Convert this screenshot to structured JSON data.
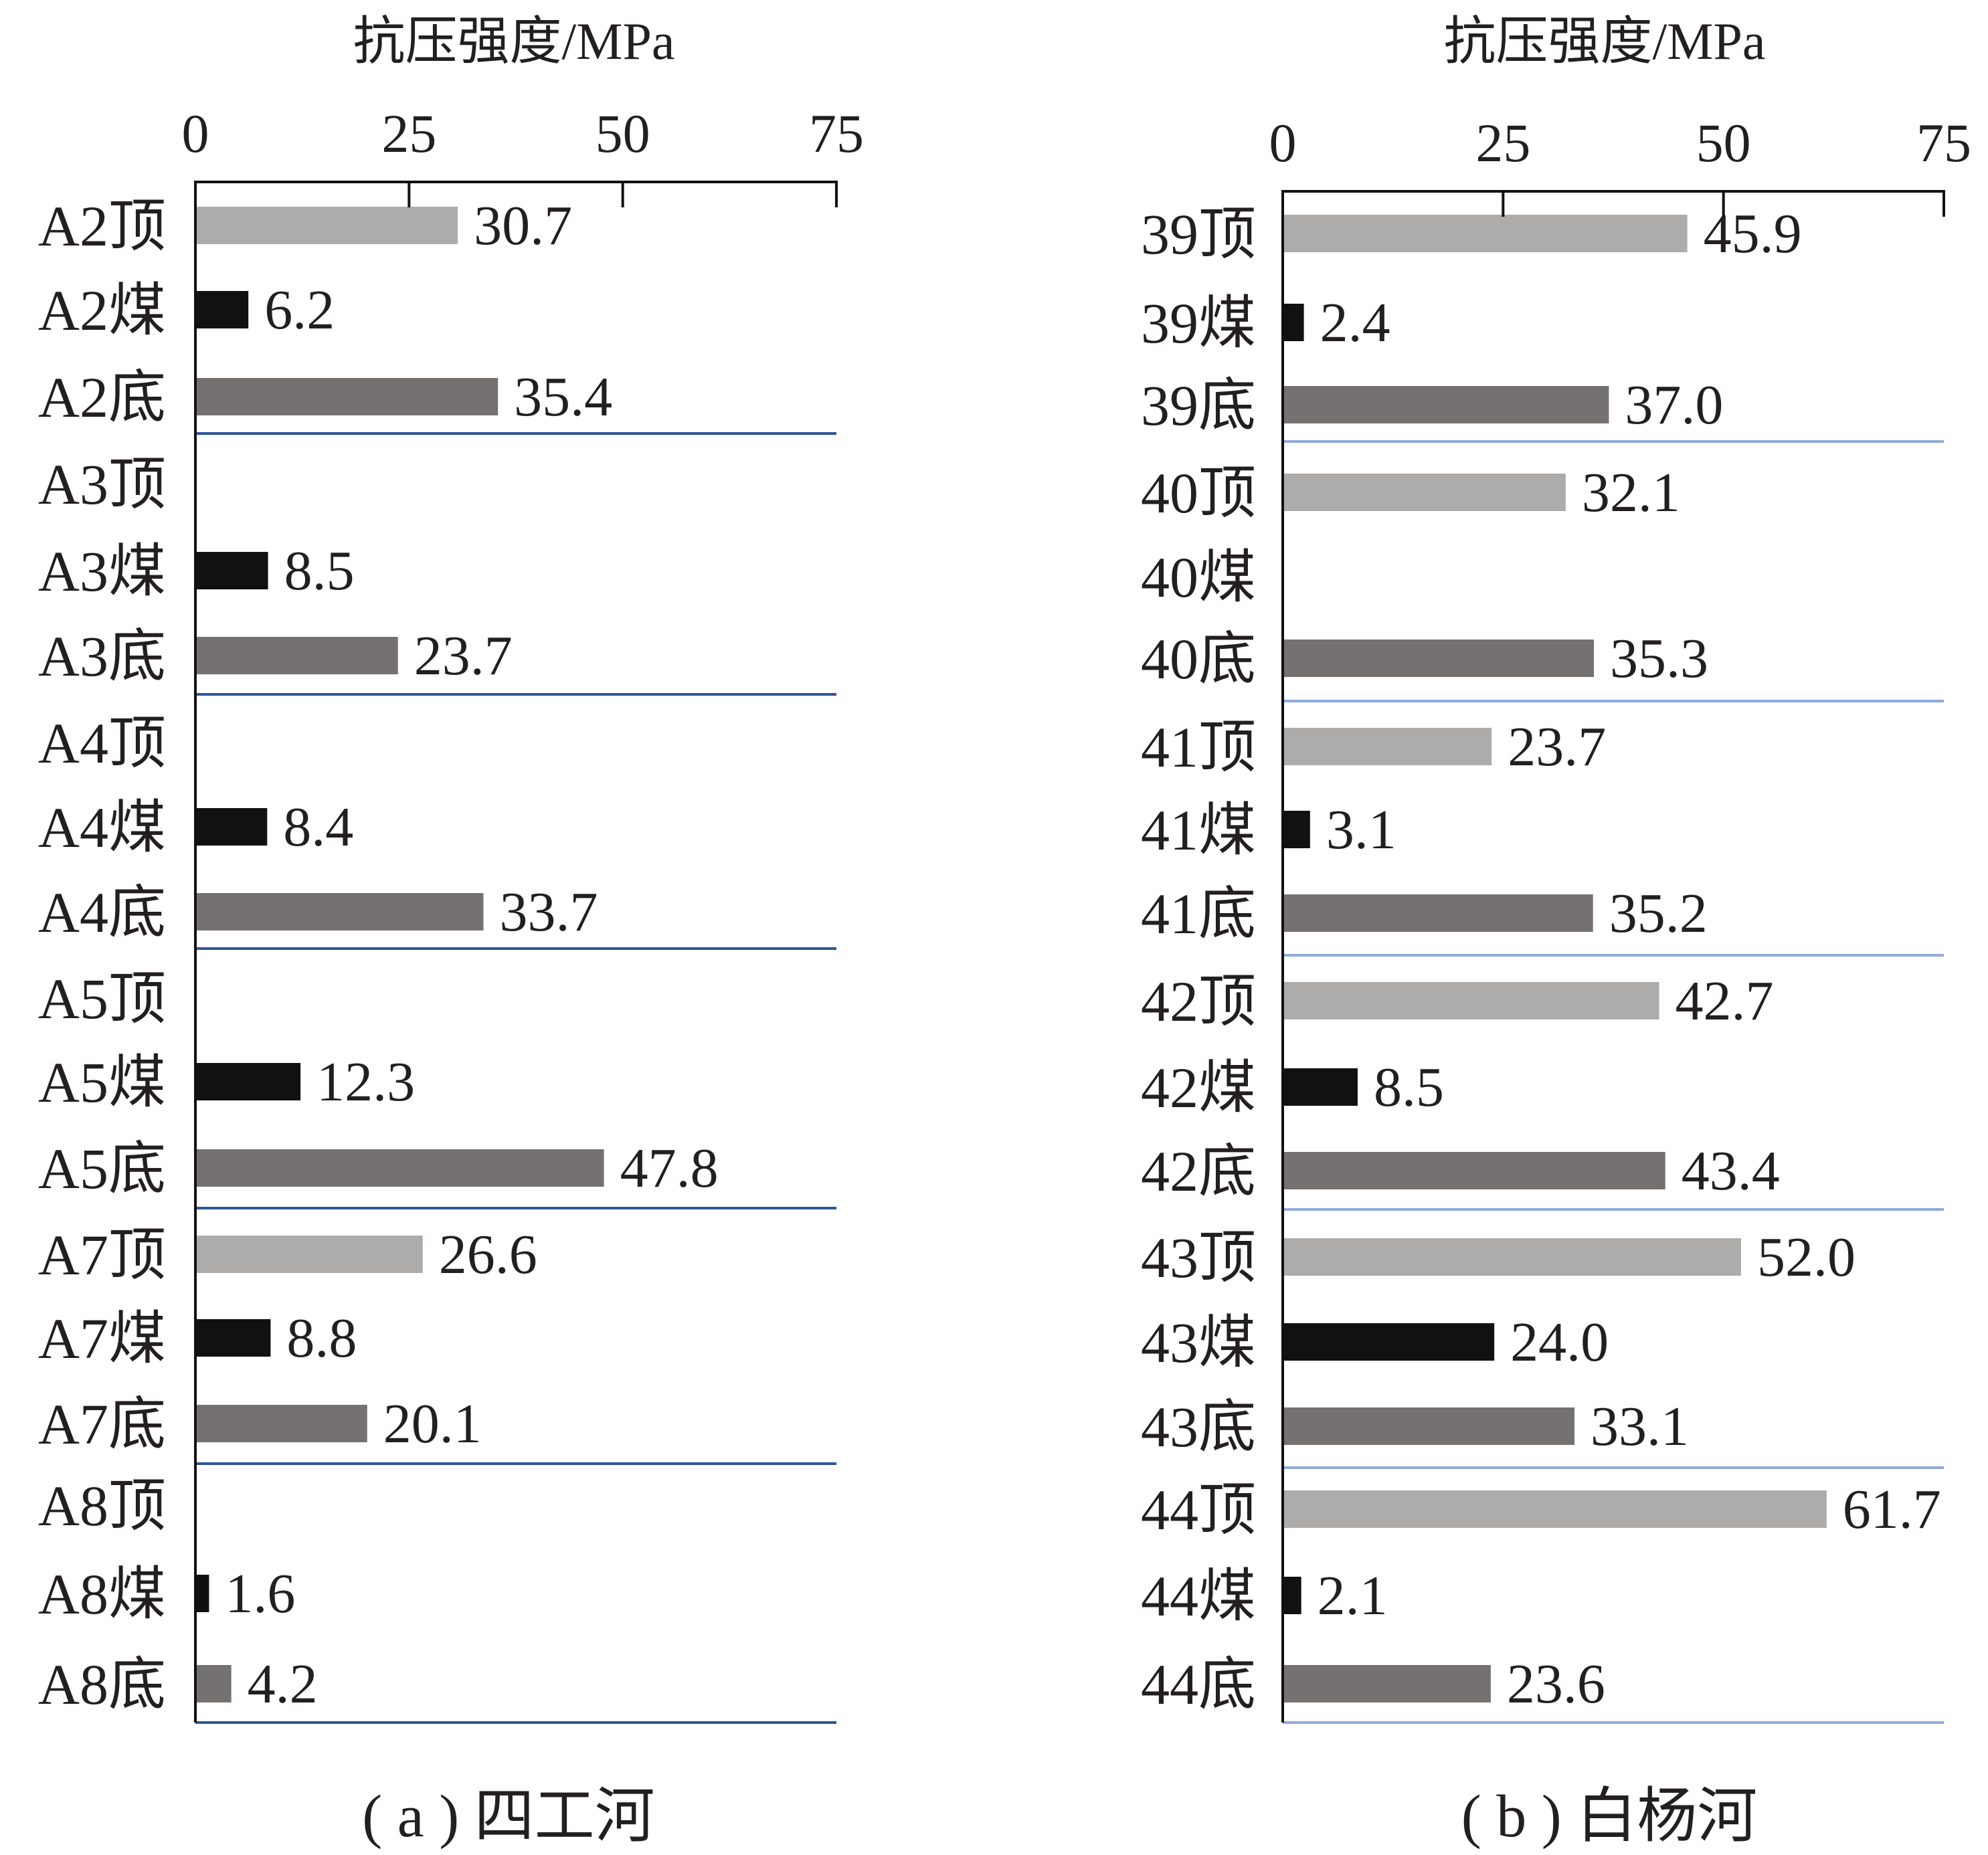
{
  "chart_data": [
    {
      "type": "bar",
      "orientation": "horizontal",
      "xlabel": "抗压强度/MPa",
      "caption": "( a ) 四工河",
      "xlim": [
        0,
        75
      ],
      "xticks": [
        "0",
        "25",
        "50",
        "75"
      ],
      "axis_position": "top",
      "categories": [
        "A2顶",
        "A2煤",
        "A2底",
        "A3顶",
        "A3煤",
        "A3底",
        "A4顶",
        "A4煤",
        "A4底",
        "A5顶",
        "A5煤",
        "A5底",
        "A7顶",
        "A7煤",
        "A7底",
        "A8顶",
        "A8煤",
        "A8底"
      ],
      "values": [
        30.7,
        6.2,
        35.4,
        null,
        8.5,
        23.7,
        null,
        8.4,
        33.7,
        null,
        12.3,
        47.8,
        26.6,
        8.8,
        20.1,
        null,
        1.6,
        4.2
      ],
      "value_labels": [
        "30.7",
        "6.2",
        "35.4",
        "",
        "8.5",
        "23.7",
        "",
        "8.4",
        "33.7",
        "",
        "12.3",
        "47.8",
        "26.6",
        "8.8",
        "20.1",
        "",
        "1.6",
        "4.2"
      ],
      "group_size": 3,
      "colors": {
        "顶": "#aeabab",
        "煤": "#111111",
        "底": "#767171",
        "separator": "#2f5597"
      }
    },
    {
      "type": "bar",
      "orientation": "horizontal",
      "xlabel": "抗压强度/MPa",
      "caption": "( b ) 白杨河",
      "xlim": [
        0,
        75
      ],
      "xticks": [
        "0",
        "25",
        "50",
        "75"
      ],
      "axis_position": "top",
      "categories": [
        "39顶",
        "39煤",
        "39底",
        "40顶",
        "40煤",
        "40底",
        "41顶",
        "41煤",
        "41底",
        "42顶",
        "42煤",
        "42底",
        "43顶",
        "43煤",
        "43底",
        "44顶",
        "44煤",
        "44底"
      ],
      "values": [
        45.9,
        2.4,
        37.0,
        32.1,
        null,
        35.3,
        23.7,
        3.1,
        35.2,
        42.7,
        8.5,
        43.4,
        52.0,
        24.0,
        33.1,
        61.7,
        2.1,
        23.6
      ],
      "value_labels": [
        "45.9",
        "2.4",
        "37.0",
        "32.1",
        "",
        "35.3",
        "23.7",
        "3.1",
        "35.2",
        "42.7",
        "8.5",
        "43.4",
        "52.0",
        "24.0",
        "33.1",
        "61.7",
        "2.1",
        "23.6"
      ],
      "group_size": 3,
      "colors": {
        "顶": "#aeabab",
        "煤": "#111111",
        "底": "#767171",
        "separator": "#8faadc"
      }
    }
  ]
}
